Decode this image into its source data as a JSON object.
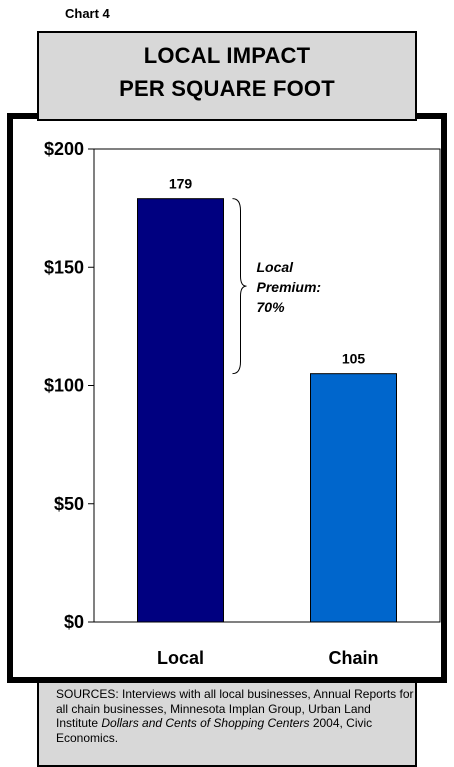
{
  "header": {
    "chart_label": "Chart 4"
  },
  "title": {
    "line1": "LOCAL IMPACT",
    "line2": "PER SQUARE FOOT"
  },
  "chart_data": {
    "type": "bar",
    "title": "LOCAL IMPACT PER SQUARE FOOT",
    "categories": [
      "Local",
      "Chain"
    ],
    "values": [
      179,
      105
    ],
    "bar_colors": [
      "#000080",
      "#0066cc"
    ],
    "ylim": [
      0,
      200
    ],
    "y_ticks": [
      0,
      50,
      100,
      150,
      200
    ],
    "y_tick_labels": [
      "$0",
      "$50",
      "$100",
      "$150",
      "$200"
    ],
    "grid": false,
    "annotation": {
      "lines": [
        "Local",
        "Premium:",
        "70%"
      ],
      "range": [
        105,
        179
      ]
    }
  },
  "sources": {
    "prefix": "SOURCES: Interviews with all local businesses, Annual Reports for all chain businesses, Minnesota Implan Group, Urban Land Institute ",
    "italic": "Dollars and Cents of Shopping Centers",
    "suffix": " 2004, Civic Economics."
  }
}
